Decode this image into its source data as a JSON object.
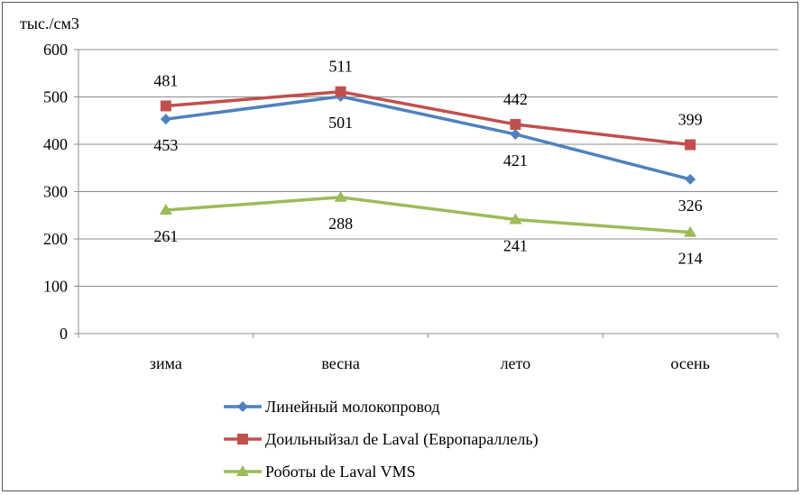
{
  "chart_data": {
    "type": "line",
    "ylabel": "тыс./см3",
    "ylim": [
      0,
      600
    ],
    "yticks": [
      0,
      100,
      200,
      300,
      400,
      500,
      600
    ],
    "categories": [
      "зима",
      "весна",
      "лето",
      "осень"
    ],
    "grid": "horizontal",
    "legend_position": "bottom",
    "series": [
      {
        "name": "Линейный молокопровод",
        "values": [
          453,
          501,
          421,
          326
        ],
        "color": "#4F81BD",
        "marker": "diamond",
        "label_pos": "below"
      },
      {
        "name": "Доильныйзал de Laval (Европараллель)",
        "values": [
          481,
          511,
          442,
          399
        ],
        "color": "#C0504D",
        "marker": "square",
        "label_pos": "above"
      },
      {
        "name": "Роботы de Laval VMS",
        "values": [
          261,
          288,
          241,
          214
        ],
        "color": "#9BBB59",
        "marker": "triangle",
        "label_pos": "below"
      }
    ]
  }
}
